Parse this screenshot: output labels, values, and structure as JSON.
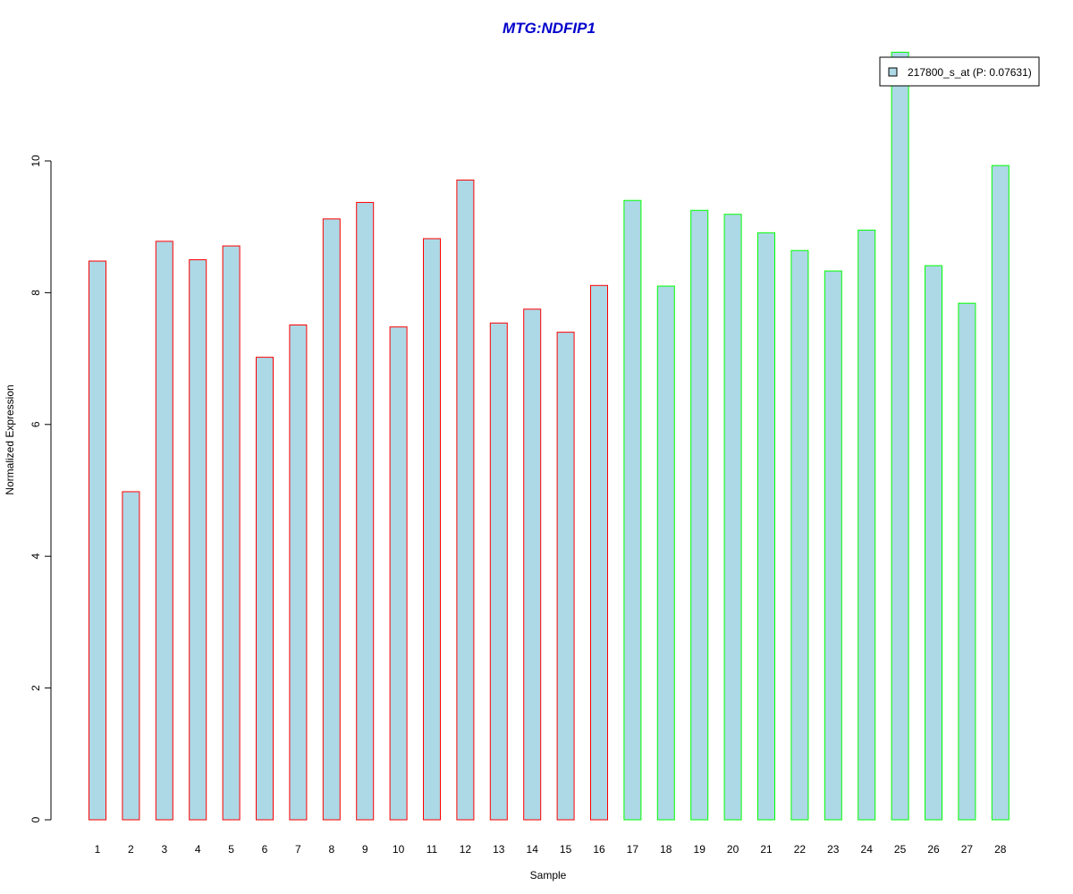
{
  "chart_data": {
    "type": "bar",
    "title": "MTG:NDFIP1",
    "xlabel": "Sample",
    "ylabel": "Normalized Expression",
    "categories": [
      "1",
      "2",
      "3",
      "4",
      "5",
      "6",
      "7",
      "8",
      "9",
      "10",
      "11",
      "12",
      "13",
      "14",
      "15",
      "16",
      "17",
      "18",
      "19",
      "20",
      "21",
      "22",
      "23",
      "24",
      "25",
      "26",
      "27",
      "28"
    ],
    "series": [
      {
        "name": "217800_s_at (P: 0.07631)",
        "values": [
          8.48,
          4.98,
          8.78,
          8.5,
          8.71,
          7.02,
          7.51,
          9.12,
          9.37,
          7.48,
          8.82,
          9.71,
          7.54,
          7.75,
          7.4,
          8.11,
          9.4,
          8.1,
          9.25,
          9.19,
          8.91,
          8.64,
          8.33,
          8.95,
          11.65,
          8.41,
          7.84,
          9.93
        ]
      }
    ],
    "groups": [
      {
        "samples": [
          1,
          16
        ],
        "border_color": "#ff0000"
      },
      {
        "samples": [
          17,
          28
        ],
        "border_color": "#00ff00"
      }
    ],
    "ylim": [
      0,
      11.8
    ],
    "yticks": [
      0,
      2,
      4,
      6,
      8,
      10
    ],
    "grid": false,
    "legend_position": "top-right",
    "colors": {
      "bar_fill": "#add8e6",
      "title": "#0000cc",
      "axis": "#000000"
    }
  }
}
